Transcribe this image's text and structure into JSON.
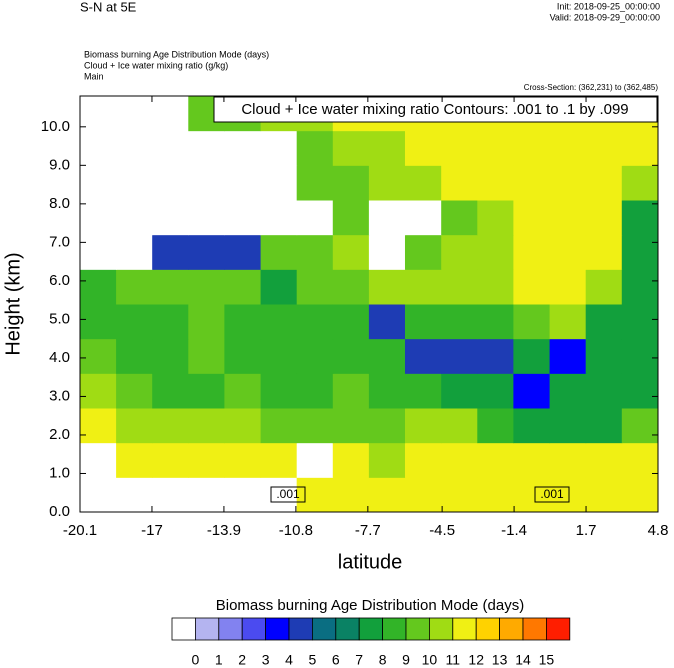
{
  "chart_data": {
    "type": "filled-contour",
    "title": "S-N at 5E",
    "init": "Init: 2018-09-25_00:00:00",
    "valid": "Valid: 2018-09-29_00:00:00",
    "fields": [
      "Biomass burning Age Distribution Mode   (days)",
      "Cloud + Ice water mixing ratio   (g/kg)",
      "Main"
    ],
    "cross_section": "Cross-Section: (362,231) to (362,485)",
    "contour_title": "Cloud + Ice water mixing ratio Contours: .001 to .1 by .099",
    "contour_labels": [
      ".001",
      ".001"
    ],
    "xlabel": "latitude",
    "ylabel": "Height (km)",
    "xlim": [
      -20.1,
      4.8
    ],
    "ylim": [
      0,
      10.8
    ],
    "xticks": [
      -20.1,
      -17.0,
      -13.9,
      -10.8,
      -7.7,
      -4.5,
      -1.4,
      1.7,
      4.8
    ],
    "yticks": [
      {
        "value": 0,
        "label": "0.0"
      },
      {
        "value": 1,
        "label": "1.0"
      },
      {
        "value": 2,
        "label": "2.0"
      },
      {
        "value": 3,
        "label": "3.0"
      },
      {
        "value": 4,
        "label": "4.0"
      },
      {
        "value": 5,
        "label": "5.0"
      },
      {
        "value": 6,
        "label": "6.0"
      },
      {
        "value": 7,
        "label": "7.0"
      },
      {
        "value": 8,
        "label": "8.0"
      },
      {
        "value": 9,
        "label": "9.0"
      },
      {
        "value": 10,
        "label": "10.0"
      }
    ],
    "x": [
      -19.32,
      -17.77,
      -16.21,
      -14.66,
      -13.1,
      -11.54,
      -9.99,
      -8.43,
      -6.88,
      -5.32,
      -3.76,
      -2.21,
      -0.65,
      0.91,
      2.46,
      4.02
    ],
    "y": [
      0.45,
      1.35,
      2.25,
      3.15,
      4.05,
      4.95,
      5.85,
      6.75,
      7.65,
      8.55,
      9.45,
      10.35
    ],
    "z": [
      [
        -0.5,
        -0.5,
        -0.5,
        -0.5,
        -0.5,
        -0.5,
        11.5,
        11.5,
        11.5,
        11.5,
        11.5,
        11.5,
        11.5,
        11.5,
        11.5,
        11.5
      ],
      [
        -0.5,
        11.5,
        11.5,
        11.5,
        11.5,
        11.5,
        -0.5,
        11.5,
        10.5,
        11.5,
        11.5,
        11.5,
        11.5,
        11.5,
        11.5,
        11.5
      ],
      [
        11.5,
        10.5,
        10.5,
        10.5,
        10.5,
        9.5,
        9.5,
        9.5,
        9.5,
        10.5,
        10.5,
        8.5,
        7.5,
        7.5,
        7.5,
        9.5
      ],
      [
        10.5,
        9.5,
        8.5,
        8.5,
        9.5,
        8.5,
        8.5,
        9.5,
        8.5,
        8.5,
        7.5,
        7.5,
        3.5,
        7.5,
        7.5,
        7.5
      ],
      [
        9.5,
        8.5,
        8.5,
        9.5,
        8.5,
        8.5,
        8.5,
        8.5,
        8.5,
        4.5,
        4.5,
        4.5,
        7.5,
        3.5,
        7.5,
        7.5
      ],
      [
        8.5,
        8.5,
        8.5,
        9.5,
        8.5,
        8.5,
        8.5,
        8.5,
        4.5,
        8.5,
        8.5,
        8.5,
        9.5,
        10.5,
        7.5,
        7.5
      ],
      [
        8.5,
        9.5,
        9.5,
        9.5,
        9.5,
        7.5,
        9.5,
        9.5,
        10.5,
        10.5,
        10.5,
        10.5,
        11.5,
        11.5,
        10.5,
        7.5
      ],
      [
        -0.5,
        -0.5,
        4.5,
        4.5,
        4.5,
        9.5,
        9.5,
        10.5,
        -0.5,
        9.5,
        10.5,
        10.5,
        11.5,
        11.5,
        11.5,
        7.5
      ],
      [
        -0.5,
        -0.5,
        -0.5,
        -0.5,
        -0.5,
        -0.5,
        -0.5,
        9.5,
        -0.5,
        -0.5,
        9.5,
        10.5,
        11.5,
        11.5,
        11.5,
        7.5
      ],
      [
        -0.5,
        -0.5,
        -0.5,
        -0.5,
        -0.5,
        -0.5,
        9.5,
        9.5,
        10.5,
        10.5,
        11.5,
        11.5,
        11.5,
        11.5,
        11.5,
        10.5
      ],
      [
        -0.5,
        -0.5,
        -0.5,
        -0.5,
        -0.5,
        -0.5,
        9.5,
        10.5,
        10.5,
        11.5,
        11.5,
        11.5,
        11.5,
        11.5,
        11.5,
        11.5
      ],
      [
        -0.5,
        -0.5,
        -0.5,
        9.5,
        9.5,
        10.5,
        10.5,
        11.5,
        11.5,
        11.5,
        11.5,
        11.5,
        11.5,
        11.5,
        11.5,
        11.5
      ]
    ],
    "colorbar_title": "Biomass burning Age Distribution Mode  (days)",
    "levels": [
      0,
      1,
      2,
      3,
      4,
      5,
      6,
      7,
      8,
      9,
      10,
      11,
      12,
      13,
      14,
      15
    ],
    "colors": [
      "#ffffff",
      "#b4b4f0",
      "#8282f0",
      "#4b4bf0",
      "#0000ff",
      "#1e3cb4",
      "#0a6e82",
      "#0a8264",
      "#12a03c",
      "#32b428",
      "#64c81e",
      "#a0dc14",
      "#f0f014",
      "#ffd200",
      "#ffaa00",
      "#ff7800",
      "#ff1e00"
    ]
  }
}
